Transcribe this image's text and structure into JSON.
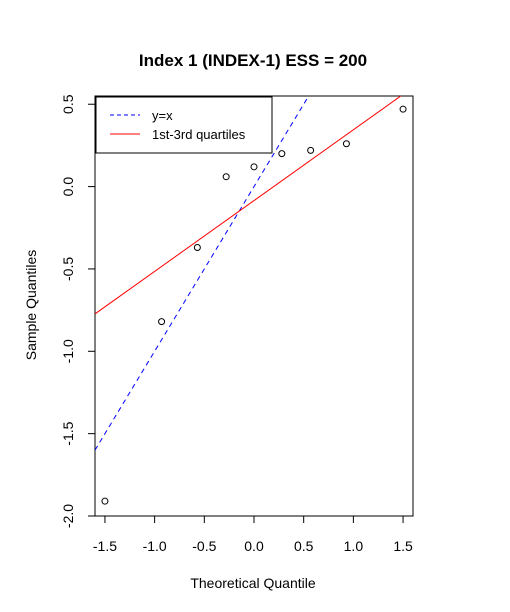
{
  "chart_data": {
    "type": "scatter",
    "title": "Index 1 (INDEX-1) ESS = 200",
    "xlabel": "Theoretical Quantile",
    "ylabel": "Sample Quantiles",
    "xlim": [
      -1.6,
      1.6
    ],
    "ylim": [
      -2.0,
      0.55
    ],
    "xticks": [
      -1.5,
      -1.0,
      -0.5,
      0.0,
      0.5,
      1.0,
      1.5
    ],
    "xtick_labels": [
      "-1.5",
      "-1.0",
      "-0.5",
      "0.0",
      "0.5",
      "1.0",
      "1.5"
    ],
    "yticks": [
      -2.0,
      -1.5,
      -1.0,
      -0.5,
      0.0,
      0.5
    ],
    "ytick_labels": [
      "-2.0",
      "-1.5",
      "-1.0",
      "-0.5",
      "0.0",
      "0.5"
    ],
    "points": [
      {
        "x": -1.5,
        "y": -1.91
      },
      {
        "x": -0.93,
        "y": -0.82
      },
      {
        "x": -0.57,
        "y": -0.37
      },
      {
        "x": -0.28,
        "y": 0.06
      },
      {
        "x": 0.0,
        "y": 0.12
      },
      {
        "x": 0.28,
        "y": 0.2
      },
      {
        "x": 0.57,
        "y": 0.22
      },
      {
        "x": 0.93,
        "y": 0.26
      },
      {
        "x": 1.5,
        "y": 0.47
      }
    ],
    "lines": [
      {
        "name": "y=x",
        "intercept": 0.0,
        "slope": 1.0,
        "color": "#0000ff",
        "dash": "dashed"
      },
      {
        "name": "1st-3rd quartiles",
        "intercept": -0.085,
        "slope": 0.43,
        "color": "#ff0000",
        "dash": "solid"
      }
    ],
    "legend": {
      "position": "top-left",
      "entries": [
        "y=x",
        "1st-3rd quartiles"
      ]
    },
    "grid": false
  }
}
